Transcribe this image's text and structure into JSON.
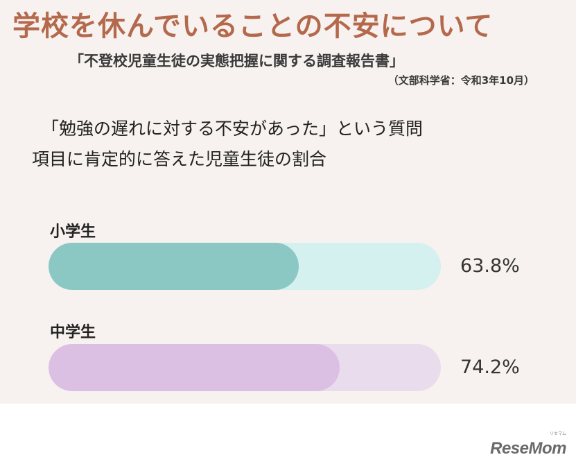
{
  "header": {
    "title": "学校を休んでいることの不安について",
    "source": "「不登校児童生徒の実態把握に関する調査報告書」",
    "source_note": "（文部科学省：令和3年10月）",
    "title_color": "#b4694c"
  },
  "question": {
    "line1": "「勉強の遅れに対する不安があった」という質問",
    "line2": "項目に肯定的に答えた児童生徒の割合"
  },
  "chart_data": {
    "type": "bar",
    "orientation": "horizontal",
    "unit": "%",
    "xlim": [
      0,
      100
    ],
    "categories": [
      "小学生",
      "中学生"
    ],
    "values": [
      63.8,
      74.2
    ],
    "value_labels": [
      "63.8%",
      "74.2%"
    ],
    "colors": {
      "fill": [
        "#8bc7c3",
        "#dcc0e4"
      ],
      "track": [
        "#d4f0ef",
        "#e9dcec"
      ]
    }
  },
  "brand": {
    "logo": "ReseMom",
    "logo_small": "リセマム"
  }
}
